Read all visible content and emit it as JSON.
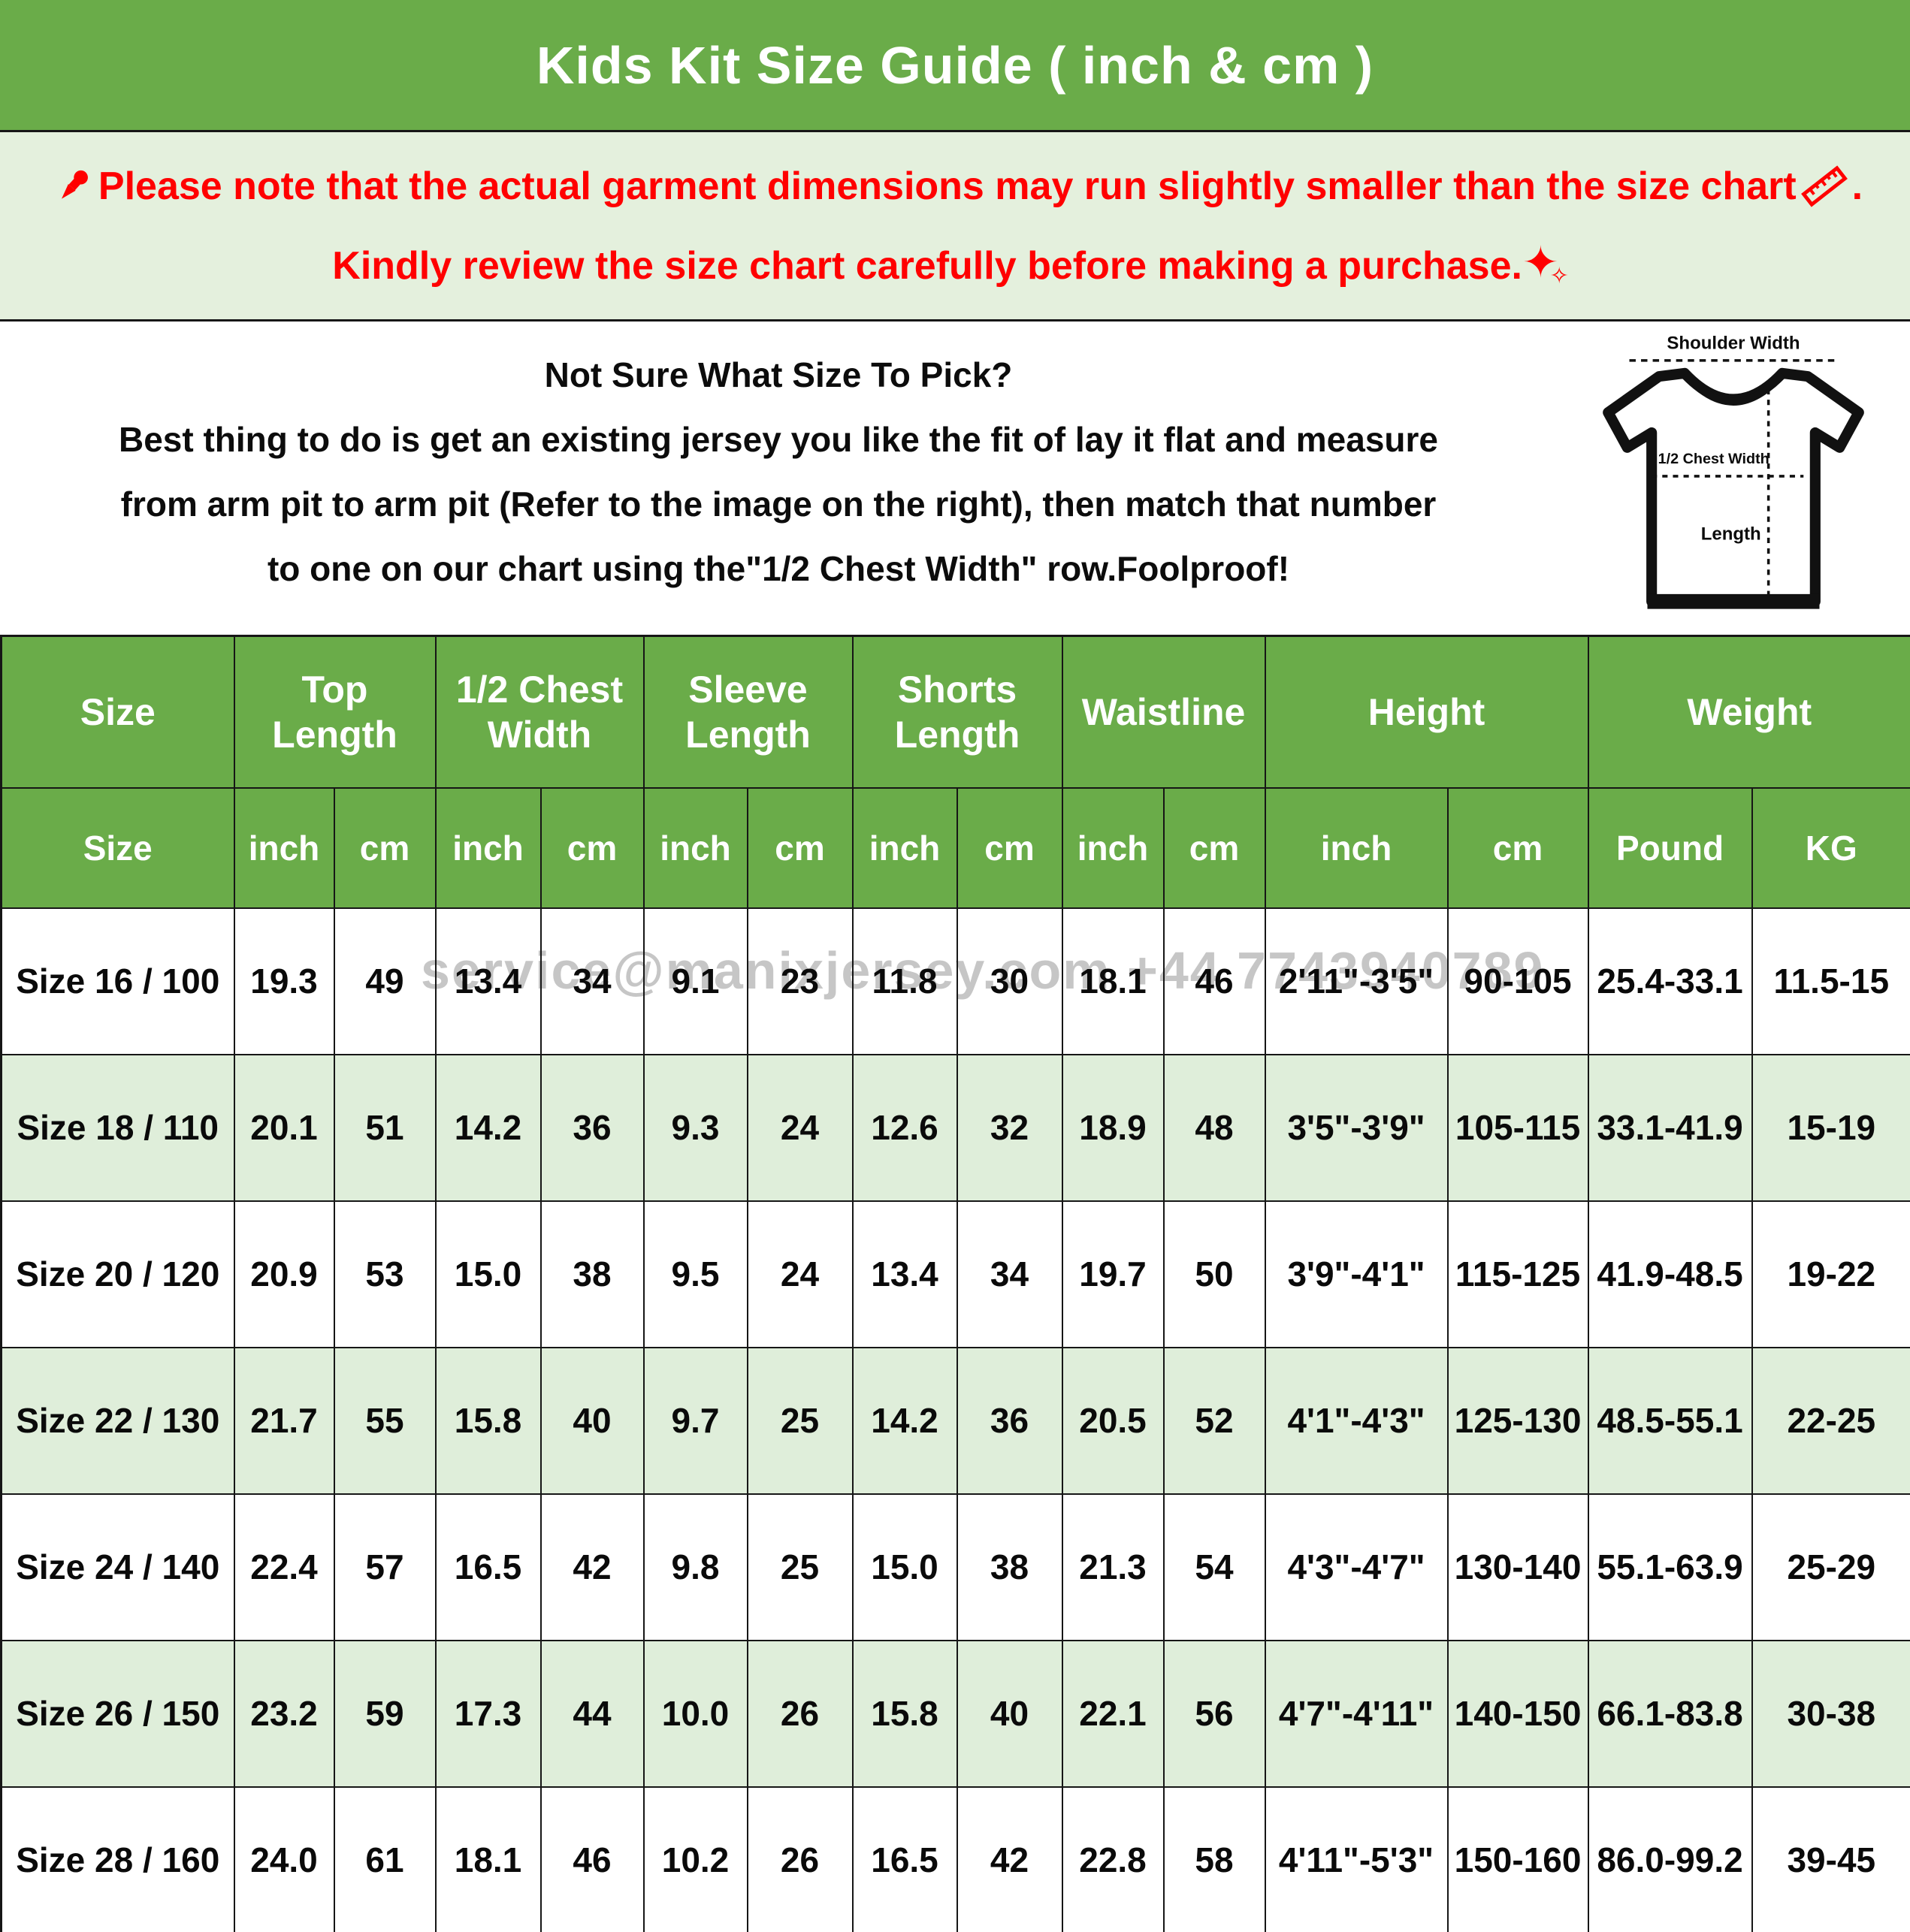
{
  "title": "Kids Kit Size Guide ( inch & cm )",
  "colors": {
    "green": "#6aac49",
    "note-bg": "#e4f0dd",
    "row-alt": "#dfeeda",
    "red": "#ff0000"
  },
  "notice": {
    "line1": "Please note that the actual garment dimensions may run slightly smaller than the size chart",
    "line1_suffix": ".",
    "line2": "Kindly review the size chart carefully before making a purchase."
  },
  "icons": {
    "pushpin": "red-pushpin-icon",
    "ruler": "red-ruler-icon",
    "sparkle": "✦",
    "sparkle_small": "✧"
  },
  "info": {
    "line1": "Not Sure What Size To Pick?",
    "line2": "Best thing to do is get an existing jersey you like the fit of lay it flat and measure",
    "line3": "from arm pit to arm pit (Refer to the image on the right), then match that number",
    "line4": "to one on our chart using the\"1/2 Chest Width\" row.Foolproof!"
  },
  "shirt_diagram": {
    "shoulder_label": "Shoulder Width",
    "chest_label": "1/2 Chest Width",
    "length_label": "Length"
  },
  "watermark": "service@manixjersey.com +44 7743940789",
  "chart_data": {
    "type": "table",
    "title": "Kids Kit Size Guide ( inch & cm )",
    "column_groups": [
      {
        "label": "Size",
        "colspan": 1
      },
      {
        "label": "Top Length",
        "colspan": 2
      },
      {
        "label": "1/2 Chest Width",
        "colspan": 2
      },
      {
        "label": "Sleeve Length",
        "colspan": 2
      },
      {
        "label": "Shorts Length",
        "colspan": 2
      },
      {
        "label": "Waistline",
        "colspan": 2
      },
      {
        "label": "Height",
        "colspan": 2
      },
      {
        "label": "Weight",
        "colspan": 2
      }
    ],
    "columns": [
      "Size",
      "inch",
      "cm",
      "inch",
      "cm",
      "inch",
      "cm",
      "inch",
      "cm",
      "inch",
      "cm",
      "inch",
      "cm",
      "Pound",
      "KG"
    ],
    "rows": [
      [
        "Size 16 / 100",
        "19.3",
        "49",
        "13.4",
        "34",
        "9.1",
        "23",
        "11.8",
        "30",
        "18.1",
        "46",
        "2'11\"-3'5\"",
        "90-105",
        "25.4-33.1",
        "11.5-15"
      ],
      [
        "Size 18 / 110",
        "20.1",
        "51",
        "14.2",
        "36",
        "9.3",
        "24",
        "12.6",
        "32",
        "18.9",
        "48",
        "3'5\"-3'9\"",
        "105-115",
        "33.1-41.9",
        "15-19"
      ],
      [
        "Size 20 / 120",
        "20.9",
        "53",
        "15.0",
        "38",
        "9.5",
        "24",
        "13.4",
        "34",
        "19.7",
        "50",
        "3'9\"-4'1\"",
        "115-125",
        "41.9-48.5",
        "19-22"
      ],
      [
        "Size 22 / 130",
        "21.7",
        "55",
        "15.8",
        "40",
        "9.7",
        "25",
        "14.2",
        "36",
        "20.5",
        "52",
        "4'1\"-4'3\"",
        "125-130",
        "48.5-55.1",
        "22-25"
      ],
      [
        "Size 24 / 140",
        "22.4",
        "57",
        "16.5",
        "42",
        "9.8",
        "25",
        "15.0",
        "38",
        "21.3",
        "54",
        "4'3\"-4'7\"",
        "130-140",
        "55.1-63.9",
        "25-29"
      ],
      [
        "Size 26 / 150",
        "23.2",
        "59",
        "17.3",
        "44",
        "10.0",
        "26",
        "15.8",
        "40",
        "22.1",
        "56",
        "4'7\"-4'11\"",
        "140-150",
        "66.1-83.8",
        "30-38"
      ],
      [
        "Size 28 / 160",
        "24.0",
        "61",
        "18.1",
        "46",
        "10.2",
        "26",
        "16.5",
        "42",
        "22.8",
        "58",
        "4'11\"-5'3\"",
        "150-160",
        "86.0-99.2",
        "39-45"
      ]
    ]
  }
}
